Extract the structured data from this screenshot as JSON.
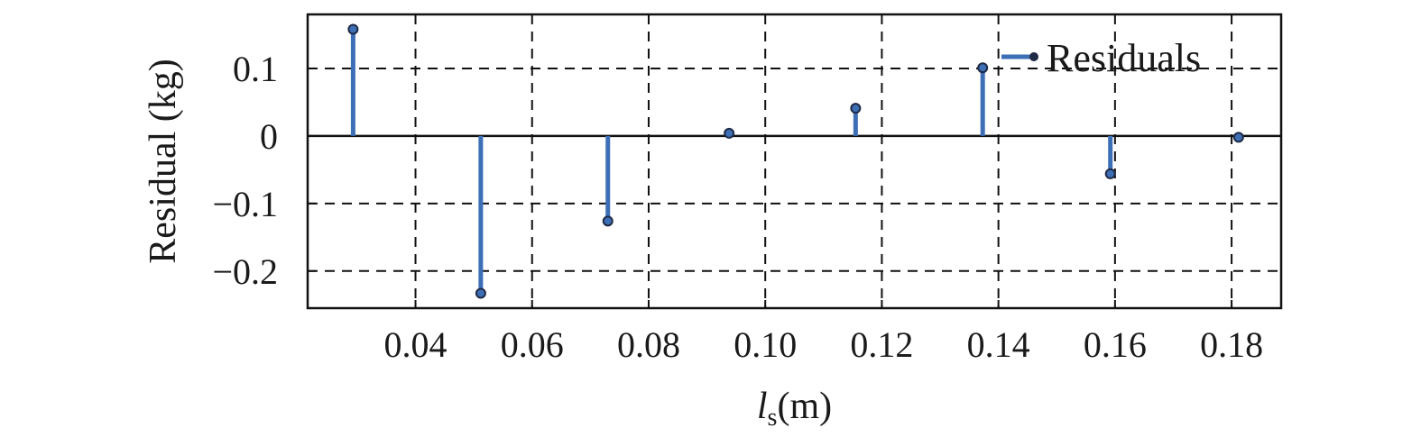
{
  "chart_data": {
    "type": "stem",
    "xlabel": {
      "symbol": "l",
      "subscript": "s",
      "unit": "(m)"
    },
    "ylabel": "Residual (kg)",
    "xlim": [
      0.0215,
      0.1885
    ],
    "ylim": [
      -0.255,
      0.18
    ],
    "x_ticks": [
      0.04,
      0.06,
      0.08,
      0.1,
      0.12,
      0.14,
      0.16,
      0.18
    ],
    "x_tick_labels": [
      "0.04",
      "0.06",
      "0.08",
      "0.10",
      "0.12",
      "0.14",
      "0.16",
      "0.18"
    ],
    "y_ticks": [
      -0.2,
      -0.1,
      0,
      0.1
    ],
    "y_tick_labels": [
      "−0.2",
      "−0.1",
      "0",
      "0.1"
    ],
    "grid": true,
    "legend": {
      "position": "top-right",
      "entries": [
        "Residuals"
      ]
    },
    "series": [
      {
        "name": "Residuals",
        "color": "#3d6fb6",
        "marker_color": "#1f2a44",
        "x": [
          0.0293,
          0.0512,
          0.073,
          0.0938,
          0.1155,
          0.1373,
          0.1592,
          0.1812
        ],
        "y": [
          0.158,
          -0.233,
          -0.126,
          0.004,
          0.041,
          0.101,
          -0.056,
          -0.002
        ]
      }
    ]
  }
}
